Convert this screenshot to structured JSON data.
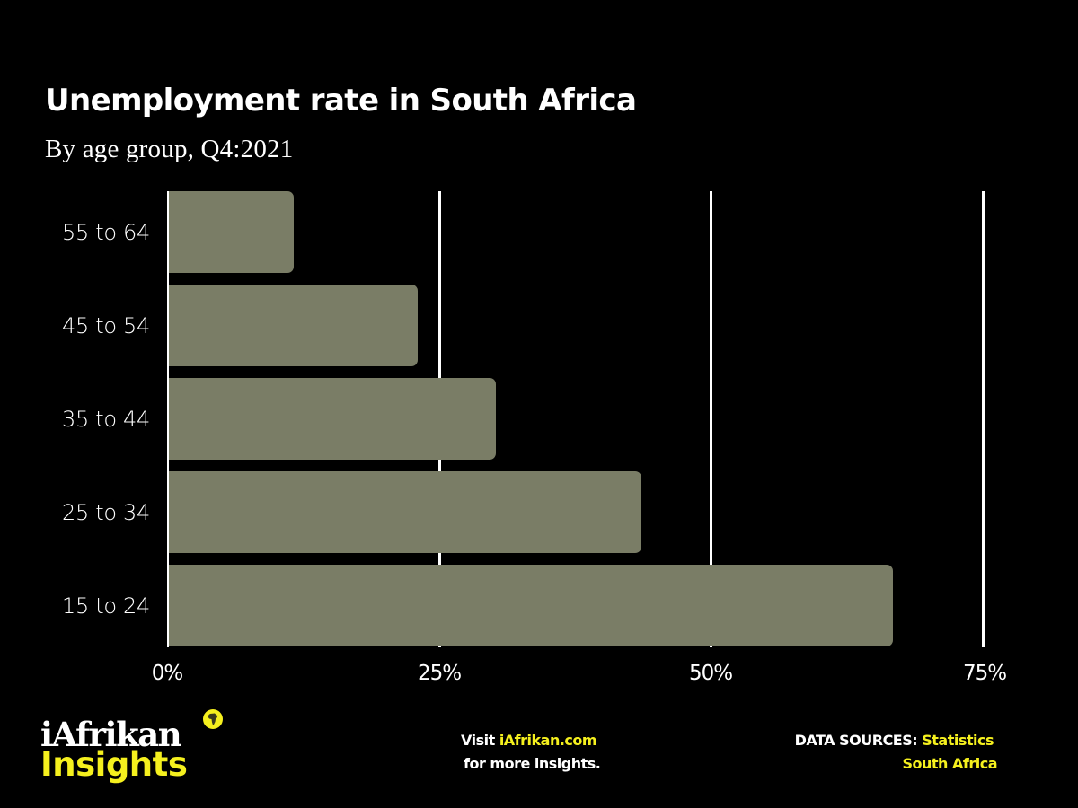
{
  "title": "Unemployment rate in South Africa",
  "subtitle": "By age group, Q4:2021",
  "colors": {
    "background": "#000000",
    "bar": "#7a7d66",
    "text": "#ffffff",
    "accent": "#f5f01e",
    "gridline": "#ffffff"
  },
  "chart_data": {
    "type": "bar",
    "orientation": "horizontal",
    "title": "Unemployment rate in South Africa",
    "subtitle": "By age group, Q4:2021",
    "xlabel": "",
    "ylabel": "",
    "categories": [
      "55 to 64",
      "45 to 54",
      "35 to 44",
      "25 to 34",
      "15 to 24"
    ],
    "values": [
      11.6,
      23.0,
      30.2,
      43.6,
      66.7
    ],
    "unit": "%",
    "xlim": [
      0,
      75
    ],
    "xticks": [
      0,
      25,
      50,
      75
    ],
    "xtick_labels": [
      "0%",
      "25%",
      "50%",
      "75%"
    ],
    "grid": true,
    "grid_axis": "x",
    "legend": null,
    "bar_color": "#7a7d66"
  },
  "axis": {
    "ticks": [
      "0%",
      "25%",
      "50%",
      "75%"
    ],
    "categories": [
      "55 to 64",
      "45 to 54",
      "35 to 44",
      "25 to 34",
      "15 to 24"
    ]
  },
  "footer": {
    "logo": {
      "top": "iAfrikan",
      "bottom": "Insights",
      "icon": "africa-map-icon"
    },
    "visit": {
      "prefix": "Visit ",
      "link": "iAfrikan.com",
      "line2": "for more insights."
    },
    "sources": {
      "label": "DATA SOURCES: ",
      "value_line1": "Statistics",
      "value_line2": "South Africa"
    }
  }
}
